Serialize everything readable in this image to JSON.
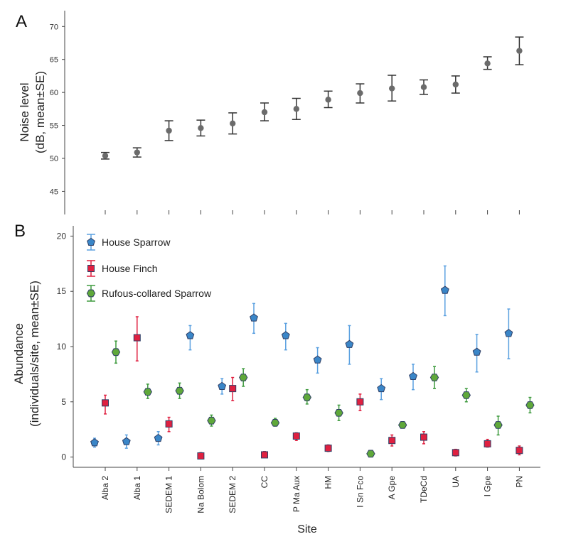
{
  "chart_data": [
    {
      "panel": "A",
      "type": "scatter",
      "ylabel_line1": "Noise level",
      "ylabel_line2": "(dB, mean±SE)",
      "ylim": [
        43,
        71
      ],
      "yticks": [
        45,
        50,
        55,
        60,
        65,
        70
      ],
      "categories": [
        "Alba 2",
        "Alba 1",
        "SEDEM 1",
        "Na Bolom",
        "SEDEM 2",
        "CC",
        "P Ma Aux",
        "HM",
        "I Sn Fco",
        "A Gpe",
        "TDeCd",
        "UA",
        "I Gpe",
        "PN"
      ],
      "series": [
        {
          "color": "#6b6b6b",
          "values": [
            50.4,
            50.9,
            54.2,
            54.6,
            55.3,
            57.0,
            57.5,
            58.9,
            59.9,
            60.6,
            60.8,
            61.2,
            64.4,
            66.3
          ],
          "lower": [
            49.9,
            50.2,
            52.7,
            53.4,
            53.7,
            55.7,
            55.9,
            57.7,
            58.4,
            58.7,
            59.7,
            59.9,
            63.5,
            64.2
          ],
          "upper": [
            50.9,
            51.6,
            55.7,
            55.8,
            56.9,
            58.4,
            59.1,
            60.2,
            61.3,
            62.6,
            61.9,
            62.5,
            65.4,
            68.4
          ]
        }
      ]
    },
    {
      "panel": "B",
      "type": "scatter",
      "ylabel_line1": "Abundance",
      "ylabel_line2": "(individuals/site, mean±SE)",
      "xlabel": "Site",
      "ylim": [
        -0.8,
        20.8
      ],
      "yticks": [
        0,
        5,
        10,
        15,
        20
      ],
      "categories": [
        "Alba 2",
        "Alba 1",
        "SEDEM 1",
        "Na Bolom",
        "SEDEM 2",
        "CC",
        "P Ma Aux",
        "HM",
        "I Sn Fco",
        "A Gpe",
        "TDeCd",
        "UA",
        "I Gpe",
        "PN"
      ],
      "legend_position": "top-left",
      "series": [
        {
          "name": "House Sparrow",
          "marker": "pentagon",
          "color": "#3a86c8",
          "error_color": "#5aa0e0",
          "values": [
            1.3,
            1.4,
            1.7,
            11.0,
            6.4,
            12.6,
            11.0,
            8.8,
            10.2,
            6.2,
            7.3,
            15.1,
            9.5,
            11.2
          ],
          "lower": [
            0.9,
            0.8,
            1.1,
            9.7,
            5.7,
            11.2,
            9.7,
            7.6,
            8.4,
            5.2,
            6.1,
            12.8,
            7.7,
            8.9
          ],
          "upper": [
            1.7,
            2.0,
            2.3,
            11.9,
            7.1,
            13.9,
            12.1,
            9.9,
            11.9,
            7.1,
            8.4,
            17.3,
            11.1,
            13.4
          ]
        },
        {
          "name": "House Finch",
          "marker": "square",
          "color": "#e02040",
          "error_color": "#e02040",
          "values": [
            4.9,
            10.8,
            3.0,
            0.1,
            6.2,
            0.2,
            1.9,
            0.8,
            5.0,
            1.5,
            1.8,
            0.4,
            1.2,
            0.6
          ],
          "lower": [
            3.9,
            8.7,
            2.3,
            -0.1,
            5.1,
            0.0,
            1.5,
            0.5,
            4.2,
            1.0,
            1.2,
            0.1,
            0.9,
            0.2
          ],
          "upper": [
            5.6,
            12.7,
            3.6,
            0.4,
            7.2,
            0.5,
            2.2,
            1.1,
            5.7,
            2.0,
            2.3,
            0.7,
            1.6,
            1.0
          ]
        },
        {
          "name": "Rufous-collared Sparrow",
          "marker": "hexagon",
          "color": "#5fa83a",
          "error_color": "#3e9a3e",
          "values": [
            9.5,
            5.9,
            6.0,
            3.3,
            7.2,
            3.1,
            5.4,
            4.0,
            0.3,
            2.9,
            7.2,
            5.6,
            2.9,
            4.7
          ],
          "lower": [
            8.5,
            5.3,
            5.3,
            2.8,
            6.4,
            2.8,
            4.8,
            3.3,
            0.2,
            2.7,
            6.2,
            5.0,
            2.0,
            4.0
          ],
          "upper": [
            10.5,
            6.6,
            6.7,
            3.8,
            8.0,
            3.5,
            6.1,
            4.7,
            0.4,
            3.2,
            8.2,
            6.2,
            3.7,
            5.4
          ]
        }
      ]
    }
  ]
}
